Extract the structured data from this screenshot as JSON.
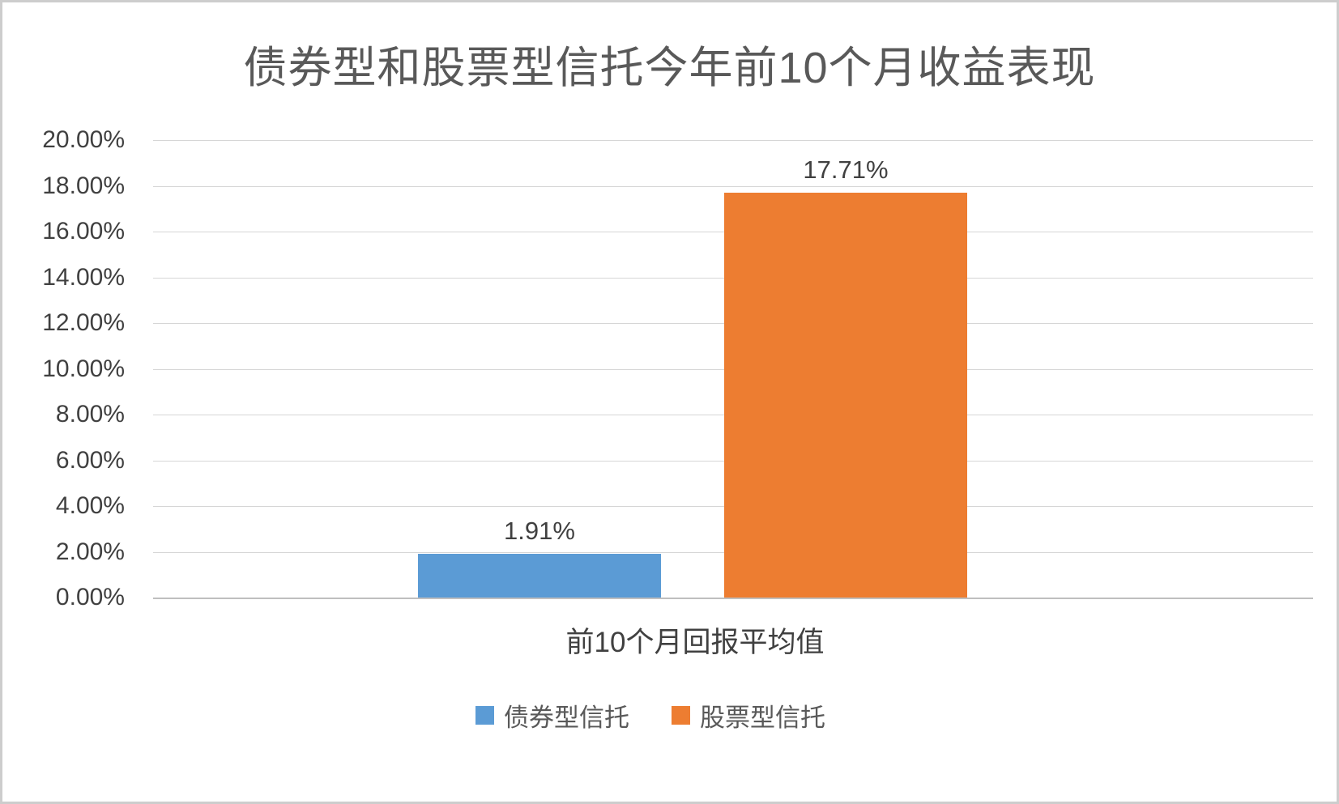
{
  "chart_data": {
    "type": "bar",
    "title": "债券型和股票型信托今年前10个月收益表现",
    "categories": [
      "前10个月回报平均值"
    ],
    "series": [
      {
        "name": "债券型信托",
        "values": [
          1.91
        ],
        "data_label": "1.91%",
        "color": "#5b9bd5"
      },
      {
        "name": "股票型信托",
        "values": [
          17.71
        ],
        "data_label": "17.71%",
        "color": "#ed7d31"
      }
    ],
    "ylabel": "",
    "xlabel": "",
    "ylim": [
      0,
      20
    ],
    "ytick_step": 2,
    "ytick_labels": [
      "0.00%",
      "2.00%",
      "4.00%",
      "6.00%",
      "8.00%",
      "10.00%",
      "12.00%",
      "14.00%",
      "16.00%",
      "18.00%",
      "20.00%"
    ],
    "grid": true,
    "legend_position": "bottom"
  }
}
